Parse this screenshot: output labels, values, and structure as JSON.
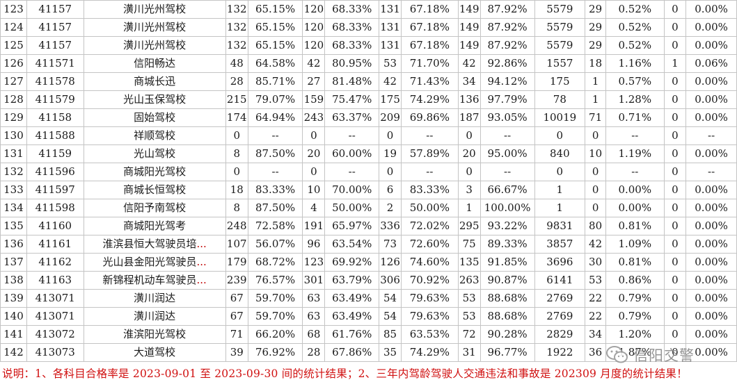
{
  "rows": [
    [
      "123",
      "41157",
      "潢川光州驾校",
      "132",
      "65.15%",
      "120",
      "68.33%",
      "131",
      "67.18%",
      "149",
      "87.92%",
      "5579",
      "29",
      "0.52%",
      "0",
      "0.00%"
    ],
    [
      "124",
      "41157",
      "潢川光州驾校",
      "132",
      "65.15%",
      "120",
      "68.33%",
      "131",
      "67.18%",
      "149",
      "87.92%",
      "5579",
      "29",
      "0.52%",
      "0",
      "0.00%"
    ],
    [
      "125",
      "41157",
      "潢川光州驾校",
      "132",
      "65.15%",
      "120",
      "68.33%",
      "131",
      "67.18%",
      "149",
      "87.92%",
      "5579",
      "29",
      "0.52%",
      "0",
      "0.00%"
    ],
    [
      "126",
      "411571",
      "信阳畅达",
      "48",
      "64.58%",
      "42",
      "80.95%",
      "53",
      "71.70%",
      "42",
      "92.86%",
      "1557",
      "18",
      "1.16%",
      "1",
      "0.06%"
    ],
    [
      "127",
      "411578",
      "商城长迅",
      "28",
      "85.71%",
      "27",
      "81.48%",
      "42",
      "71.43%",
      "34",
      "94.12%",
      "175",
      "1",
      "0.57%",
      "0",
      "0.00%"
    ],
    [
      "128",
      "411579",
      "光山玉保驾校",
      "215",
      "79.07%",
      "159",
      "75.47%",
      "175",
      "74.29%",
      "136",
      "97.79%",
      "78",
      "1",
      "1.28%",
      "0",
      "0.00%"
    ],
    [
      "129",
      "41158",
      "固始驾校",
      "174",
      "64.94%",
      "243",
      "63.37%",
      "209",
      "69.86%",
      "187",
      "93.05%",
      "10019",
      "71",
      "0.71%",
      "0",
      "0.00%"
    ],
    [
      "130",
      "411588",
      "祥顺驾校",
      "0",
      "--",
      "0",
      "--",
      "0",
      "--",
      "0",
      "--",
      "0",
      "0",
      "--",
      "0",
      "--"
    ],
    [
      "131",
      "41159",
      "光山驾校",
      "8",
      "87.50%",
      "20",
      "60.00%",
      "19",
      "57.89%",
      "20",
      "95.00%",
      "840",
      "10",
      "1.19%",
      "0",
      "0.00%"
    ],
    [
      "132",
      "411596",
      "商城阳光驾校",
      "0",
      "--",
      "0",
      "--",
      "0",
      "--",
      "0",
      "--",
      "0",
      "0",
      "--",
      "0",
      "--"
    ],
    [
      "133",
      "411597",
      "商城长恒驾校",
      "18",
      "83.33%",
      "10",
      "70.00%",
      "6",
      "83.33%",
      "3",
      "66.67%",
      "1",
      "0",
      "0.00%",
      "0",
      "0.00%"
    ],
    [
      "134",
      "411598",
      "信阳予南驾校",
      "8",
      "87.50%",
      "4",
      "50.00%",
      "2",
      "50.00%",
      "1",
      "100.00%",
      "1",
      "0",
      "0.00%",
      "0",
      "0.00%"
    ],
    [
      "135",
      "41160",
      "商城阳光驾考",
      "248",
      "72.58%",
      "191",
      "65.97%",
      "336",
      "72.02%",
      "295",
      "93.22%",
      "9831",
      "80",
      "0.81%",
      "0",
      "0.00%"
    ],
    [
      "136",
      "41161",
      "淮滨县恒大驾驶员培...",
      "107",
      "56.07%",
      "96",
      "63.54%",
      "73",
      "72.60%",
      "75",
      "89.33%",
      "3857",
      "42",
      "1.09%",
      "0",
      "0.00%"
    ],
    [
      "137",
      "41162",
      "光山县金阳光驾驶员...",
      "179",
      "68.72%",
      "123",
      "69.92%",
      "126",
      "74.60%",
      "135",
      "91.85%",
      "3696",
      "30",
      "0.81%",
      "0",
      "0.00%"
    ],
    [
      "138",
      "41163",
      "新锦程机动车驾驶员...",
      "239",
      "76.57%",
      "301",
      "63.79%",
      "306",
      "70.92%",
      "263",
      "90.87%",
      "6141",
      "53",
      "0.86%",
      "0",
      "0.00%"
    ],
    [
      "139",
      "413071",
      "潢川润达",
      "67",
      "59.70%",
      "63",
      "63.49%",
      "54",
      "79.63%",
      "53",
      "88.68%",
      "2769",
      "22",
      "0.79%",
      "0",
      "0.00%"
    ],
    [
      "140",
      "413071",
      "潢川润达",
      "67",
      "59.70%",
      "63",
      "63.49%",
      "54",
      "79.63%",
      "53",
      "88.68%",
      "2769",
      "22",
      "0.79%",
      "0",
      "0.00%"
    ],
    [
      "141",
      "413072",
      "淮滨阳光驾校",
      "71",
      "66.20%",
      "68",
      "61.76%",
      "85",
      "63.53%",
      "72",
      "90.28%",
      "2829",
      "34",
      "1.20%",
      "0",
      "0.00%"
    ],
    [
      "142",
      "413073",
      "大道驾校",
      "39",
      "76.92%",
      "28",
      "67.86%",
      "35",
      "74.29%",
      "31",
      "96.77%",
      "1922",
      "36",
      "1.87%",
      "0",
      "0.00%"
    ]
  ],
  "footer_note": "说明：1、各科目合格率是 2023-09-01 至 2023-09-30 间的统计结果；2、三年内驾龄驾驶人交通违法和事故是 202309 月度的统计结果！",
  "watermark": {
    "text": "信阳交警",
    "icon": "wechat-official-account-icon"
  }
}
